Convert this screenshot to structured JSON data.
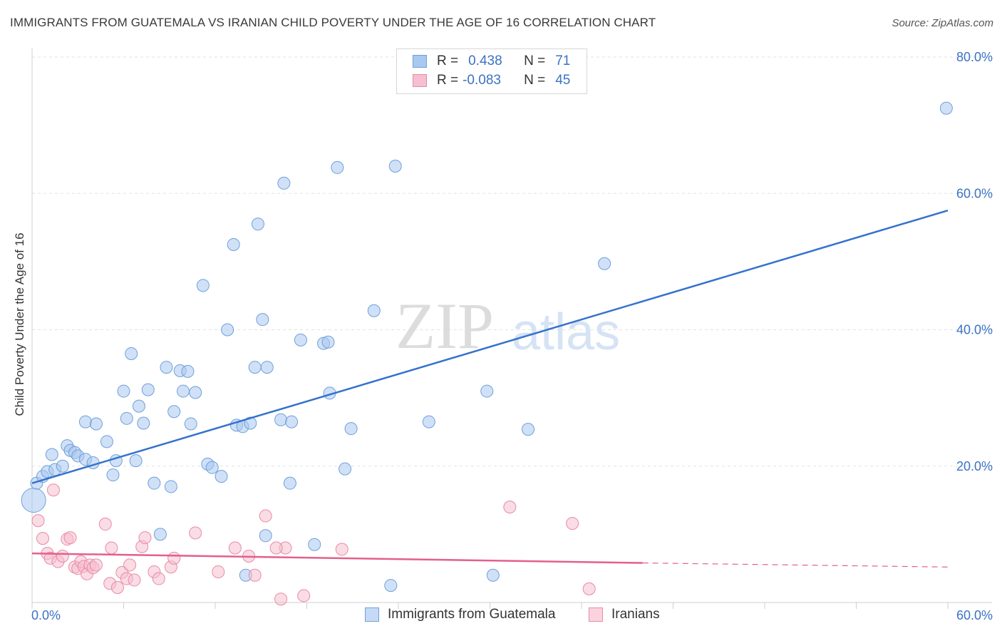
{
  "title": "IMMIGRANTS FROM GUATEMALA VS IRANIAN CHILD POVERTY UNDER THE AGE OF 16 CORRELATION CHART",
  "source": "Source: ZipAtlas.com",
  "watermark": {
    "zip": "ZIP",
    "atlas": "atlas"
  },
  "legend": {
    "rows": [
      {
        "r_label": "R =",
        "r_value": "0.438",
        "n_label": "N =",
        "n_value": "71",
        "color": "#a9c8f0",
        "border": "#6f9fdc"
      },
      {
        "r_label": "R =",
        "r_value": "-0.083",
        "n_label": "N =",
        "n_value": "45",
        "color": "#f6bfd0",
        "border": "#e88aa8"
      }
    ]
  },
  "bottom_legend": [
    {
      "label": "Immigrants from Guatemala",
      "color": "#c5daf6",
      "border": "#6f9fdc"
    },
    {
      "label": "Iranians",
      "color": "#fbd3df",
      "border": "#e88aa8"
    }
  ],
  "chart_data": {
    "type": "scatter",
    "ylabel": "Child Poverty Under the Age of 16",
    "xlim": [
      0,
      60
    ],
    "ylim": [
      0,
      80
    ],
    "x_tick_labels": [
      "0.0%",
      "60.0%"
    ],
    "y_tick_labels": [
      {
        "value": 20,
        "label": "20.0%"
      },
      {
        "value": 40,
        "label": "40.0%"
      },
      {
        "value": 60,
        "label": "60.0%"
      },
      {
        "value": 80,
        "label": "80.0%"
      }
    ],
    "grid": true,
    "series": [
      {
        "name": "Immigrants from Guatemala",
        "color": "#a9c8f0",
        "stroke": "#6f9fdc",
        "line_color": "#3572cc",
        "trend": {
          "x0": 0,
          "y0": 17.5,
          "x1": 60,
          "y1": 57.5
        },
        "points": [
          [
            0.1,
            15.0,
            "big"
          ],
          [
            0.3,
            17.5
          ],
          [
            0.7,
            18.5
          ],
          [
            1.0,
            19.2
          ],
          [
            1.5,
            19.5
          ],
          [
            1.3,
            21.7
          ],
          [
            2.0,
            20.0
          ],
          [
            2.3,
            23.0
          ],
          [
            2.5,
            22.3
          ],
          [
            2.8,
            22.0
          ],
          [
            3.0,
            21.5
          ],
          [
            3.5,
            21.0
          ],
          [
            4.0,
            20.5
          ],
          [
            3.5,
            26.5
          ],
          [
            4.2,
            26.2
          ],
          [
            4.9,
            23.6
          ],
          [
            5.5,
            20.8
          ],
          [
            5.3,
            18.7
          ],
          [
            6.0,
            31.0
          ],
          [
            6.2,
            27.0
          ],
          [
            6.5,
            36.5
          ],
          [
            6.8,
            20.8
          ],
          [
            7.0,
            28.8
          ],
          [
            7.3,
            26.3
          ],
          [
            7.6,
            31.2
          ],
          [
            8.0,
            17.5
          ],
          [
            8.4,
            10.0
          ],
          [
            8.8,
            34.5
          ],
          [
            9.1,
            17.0
          ],
          [
            9.3,
            28.0
          ],
          [
            9.7,
            34.0
          ],
          [
            9.9,
            31.0
          ],
          [
            10.2,
            33.9
          ],
          [
            10.4,
            26.2
          ],
          [
            10.7,
            30.8
          ],
          [
            11.2,
            46.5
          ],
          [
            11.5,
            20.3
          ],
          [
            11.8,
            19.8
          ],
          [
            12.4,
            18.5
          ],
          [
            12.8,
            40.0
          ],
          [
            13.2,
            52.5
          ],
          [
            13.4,
            26.0
          ],
          [
            13.8,
            25.8
          ],
          [
            14.0,
            4.0
          ],
          [
            14.3,
            26.3
          ],
          [
            14.6,
            34.5
          ],
          [
            14.8,
            55.5
          ],
          [
            15.1,
            41.5
          ],
          [
            15.3,
            9.8
          ],
          [
            15.4,
            34.5
          ],
          [
            16.3,
            26.8
          ],
          [
            16.5,
            61.5
          ],
          [
            16.9,
            17.5
          ],
          [
            17.0,
            26.5
          ],
          [
            17.6,
            38.5
          ],
          [
            18.5,
            8.5
          ],
          [
            19.1,
            38.0
          ],
          [
            19.4,
            38.2
          ],
          [
            19.5,
            30.7
          ],
          [
            20.0,
            63.8
          ],
          [
            20.5,
            19.6
          ],
          [
            20.9,
            25.5
          ],
          [
            22.4,
            42.8
          ],
          [
            23.5,
            2.5
          ],
          [
            23.8,
            64.0
          ],
          [
            26.0,
            26.5
          ],
          [
            29.8,
            31.0
          ],
          [
            30.2,
            4.0
          ],
          [
            32.5,
            25.4
          ],
          [
            37.5,
            49.7
          ],
          [
            59.9,
            72.5
          ]
        ]
      },
      {
        "name": "Iranians",
        "color": "#f6bfd0",
        "stroke": "#e88aa8",
        "line_color": "#e45f8c",
        "trend": {
          "x0": 0,
          "y0": 7.2,
          "x1": 40,
          "y1": 5.8
        },
        "trend_dashed": {
          "x0": 40,
          "y0": 5.8,
          "x1": 60,
          "y1": 5.2
        },
        "points": [
          [
            0.4,
            12.0
          ],
          [
            0.7,
            9.4
          ],
          [
            1.0,
            7.2
          ],
          [
            1.2,
            6.5
          ],
          [
            1.4,
            16.5
          ],
          [
            1.7,
            6.0
          ],
          [
            2.0,
            6.8
          ],
          [
            2.3,
            9.3
          ],
          [
            2.5,
            9.5
          ],
          [
            2.8,
            5.2
          ],
          [
            3.0,
            5.0
          ],
          [
            3.2,
            6.0
          ],
          [
            3.4,
            5.3
          ],
          [
            3.6,
            4.2
          ],
          [
            3.8,
            5.5
          ],
          [
            4.0,
            5.1
          ],
          [
            4.2,
            5.5
          ],
          [
            4.8,
            11.5
          ],
          [
            5.1,
            2.8
          ],
          [
            5.2,
            8.0
          ],
          [
            5.6,
            2.2
          ],
          [
            5.9,
            4.4
          ],
          [
            6.2,
            3.5
          ],
          [
            6.4,
            5.5
          ],
          [
            6.7,
            3.3
          ],
          [
            7.2,
            8.2
          ],
          [
            7.4,
            9.5
          ],
          [
            8.0,
            4.5
          ],
          [
            8.3,
            3.5
          ],
          [
            9.1,
            5.2
          ],
          [
            9.3,
            6.5
          ],
          [
            10.7,
            10.2
          ],
          [
            12.2,
            4.5
          ],
          [
            13.3,
            8.0
          ],
          [
            14.2,
            6.8
          ],
          [
            14.6,
            4.0
          ],
          [
            15.3,
            12.7
          ],
          [
            16.3,
            0.5
          ],
          [
            16.6,
            8.0
          ],
          [
            17.8,
            1.0
          ],
          [
            20.3,
            7.8
          ],
          [
            31.3,
            14.0
          ],
          [
            35.4,
            11.6
          ],
          [
            36.5,
            2.0
          ],
          [
            16.0,
            8.0
          ]
        ]
      }
    ]
  }
}
